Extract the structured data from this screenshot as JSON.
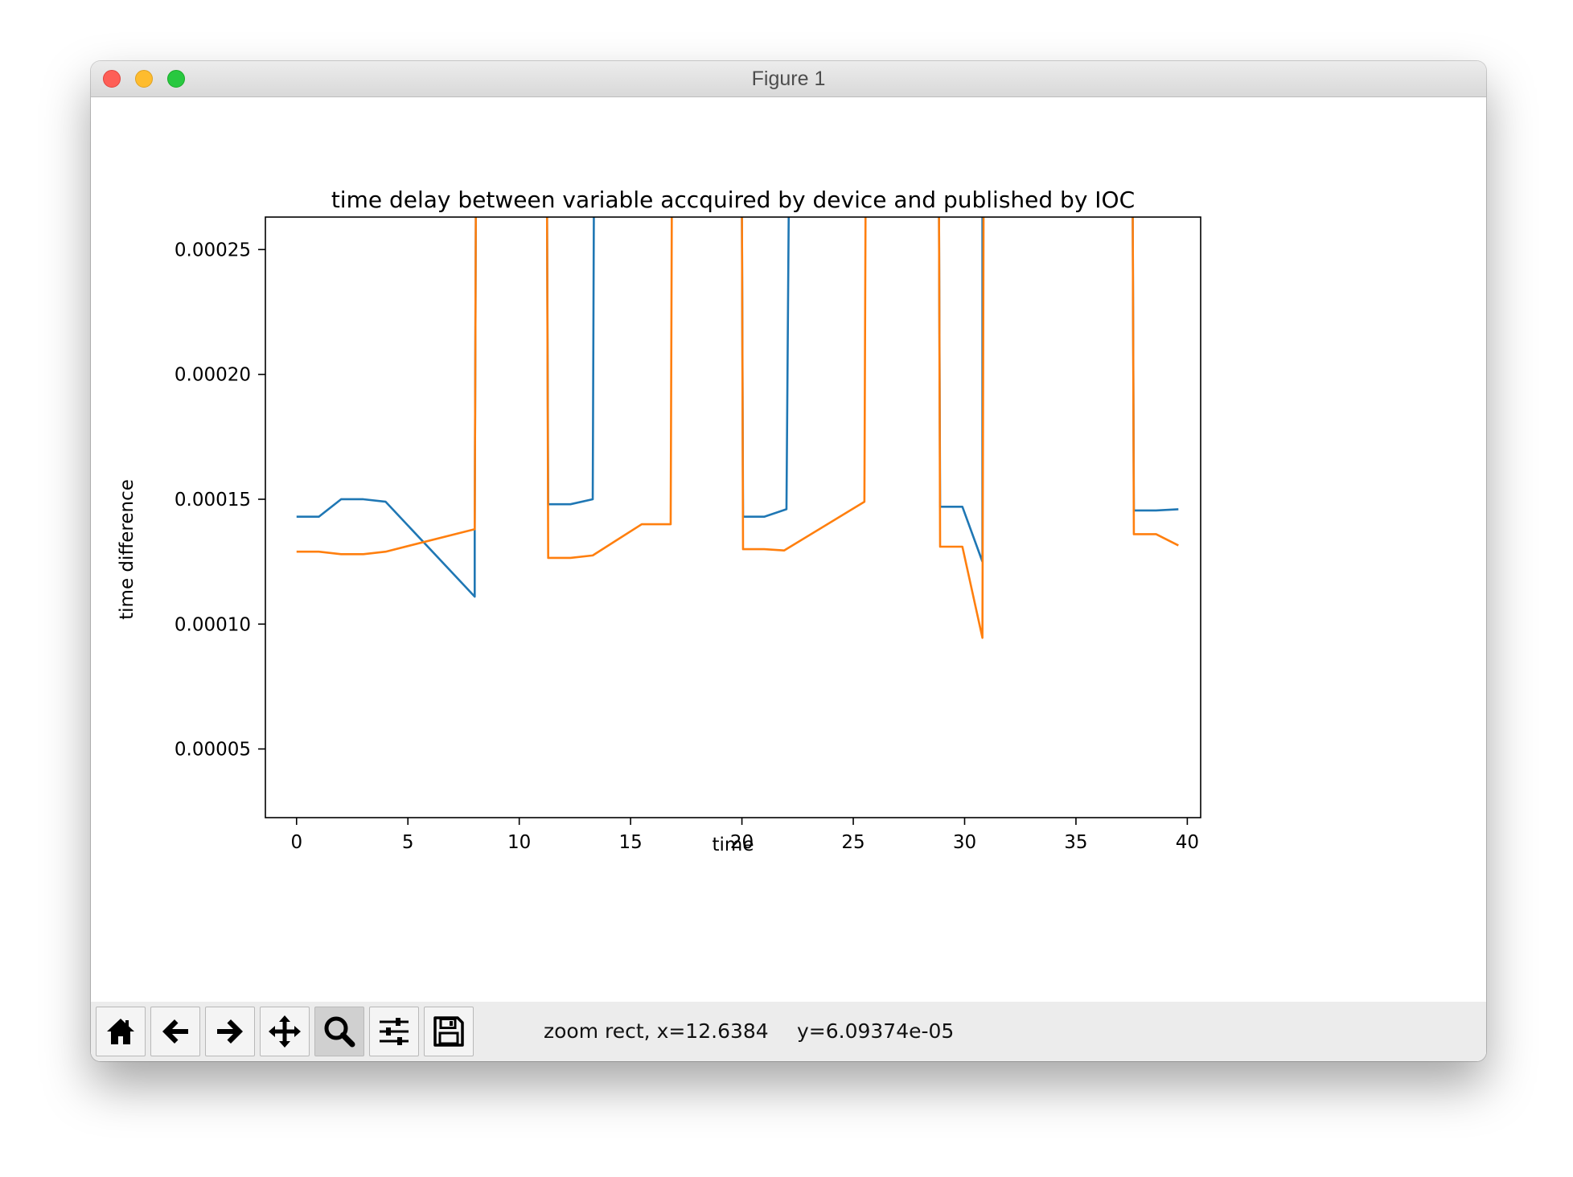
{
  "window": {
    "title": "Figure 1"
  },
  "toolbar": {
    "buttons": [
      {
        "name": "home-button",
        "icon": "home-icon"
      },
      {
        "name": "back-button",
        "icon": "arrow-left-icon"
      },
      {
        "name": "forward-button",
        "icon": "arrow-right-icon"
      },
      {
        "name": "pan-button",
        "icon": "move-icon"
      },
      {
        "name": "zoom-button",
        "icon": "magnifier-icon",
        "active": true
      },
      {
        "name": "configure-subplots-button",
        "icon": "sliders-icon"
      },
      {
        "name": "save-button",
        "icon": "floppy-disk-icon"
      }
    ],
    "status_x": "zoom rect, x=12.6384",
    "status_y": "y=6.09374e-05"
  },
  "chart_data": {
    "type": "line",
    "title": "time delay between variable accquired by device and published by IOC",
    "xlabel": "time",
    "ylabel": "time difference",
    "xlim": [
      -1.4,
      40.6
    ],
    "ylim": [
      2.25e-05,
      0.000263
    ],
    "xticks": [
      0,
      5,
      10,
      15,
      20,
      25,
      30,
      35,
      40
    ],
    "xtick_labels": [
      "0",
      "5",
      "10",
      "15",
      "20",
      "25",
      "30",
      "35",
      "40"
    ],
    "yticks": [
      5e-05,
      0.0001,
      0.00015,
      0.0002,
      0.00025
    ],
    "ytick_labels": [
      "0.00005",
      "0.00010",
      "0.00015",
      "0.00020",
      "0.00025"
    ],
    "grid": false,
    "legend": false,
    "series": [
      {
        "color": "#1f77b4",
        "segments": [
          [
            [
              0,
              0.000143
            ],
            [
              1,
              0.000143
            ],
            [
              2,
              0.00015
            ],
            [
              3,
              0.00015
            ],
            [
              4,
              0.000149
            ],
            [
              8,
              0.000111
            ],
            [
              8,
              0.000138
            ],
            [
              8.05,
              0.000263
            ]
          ],
          [
            [
              11.25,
              0.000263
            ],
            [
              11.3,
              0.000148
            ],
            [
              12.3,
              0.000148
            ],
            [
              13.3,
              0.00015
            ],
            [
              13.35,
              0.000263
            ]
          ],
          [
            [
              20,
              0.000263
            ],
            [
              20.05,
              0.000143
            ],
            [
              21,
              0.000143
            ],
            [
              22,
              0.000146
            ],
            [
              22.1,
              0.000263
            ]
          ],
          [
            [
              28.85,
              0.000263
            ],
            [
              28.9,
              0.000147
            ],
            [
              29.9,
              0.000147
            ],
            [
              30.8,
              0.000125
            ],
            [
              30.8,
              0.000263
            ]
          ],
          [
            [
              37.55,
              0.000263
            ],
            [
              37.6,
              0.0001455
            ],
            [
              38.6,
              0.0001455
            ],
            [
              39.6,
              0.000146
            ]
          ]
        ]
      },
      {
        "color": "#ff7f0e",
        "segments": [
          [
            [
              0,
              0.000129
            ],
            [
              1,
              0.000129
            ],
            [
              2,
              0.000128
            ],
            [
              3,
              0.000128
            ],
            [
              4,
              0.000129
            ],
            [
              8,
              0.000138
            ],
            [
              8.05,
              0.000263
            ]
          ],
          [
            [
              11.25,
              0.000263
            ],
            [
              11.3,
              0.0001265
            ],
            [
              12.3,
              0.0001265
            ],
            [
              13.3,
              0.0001275
            ],
            [
              15.5,
              0.00014
            ],
            [
              16.8,
              0.00014
            ],
            [
              16.85,
              0.000263
            ]
          ],
          [
            [
              20,
              0.000263
            ],
            [
              20.05,
              0.00013
            ],
            [
              21,
              0.00013
            ],
            [
              21.9,
              0.0001295
            ],
            [
              25.5,
              0.000149
            ],
            [
              25.55,
              0.000263
            ]
          ],
          [
            [
              28.85,
              0.000263
            ],
            [
              28.9,
              0.000131
            ],
            [
              29.9,
              0.000131
            ],
            [
              30.8,
              9.45e-05
            ],
            [
              30.85,
              0.000263
            ]
          ],
          [
            [
              37.55,
              0.000263
            ],
            [
              37.6,
              0.000136
            ],
            [
              38.6,
              0.000136
            ],
            [
              39.6,
              0.0001315
            ]
          ]
        ]
      }
    ]
  }
}
